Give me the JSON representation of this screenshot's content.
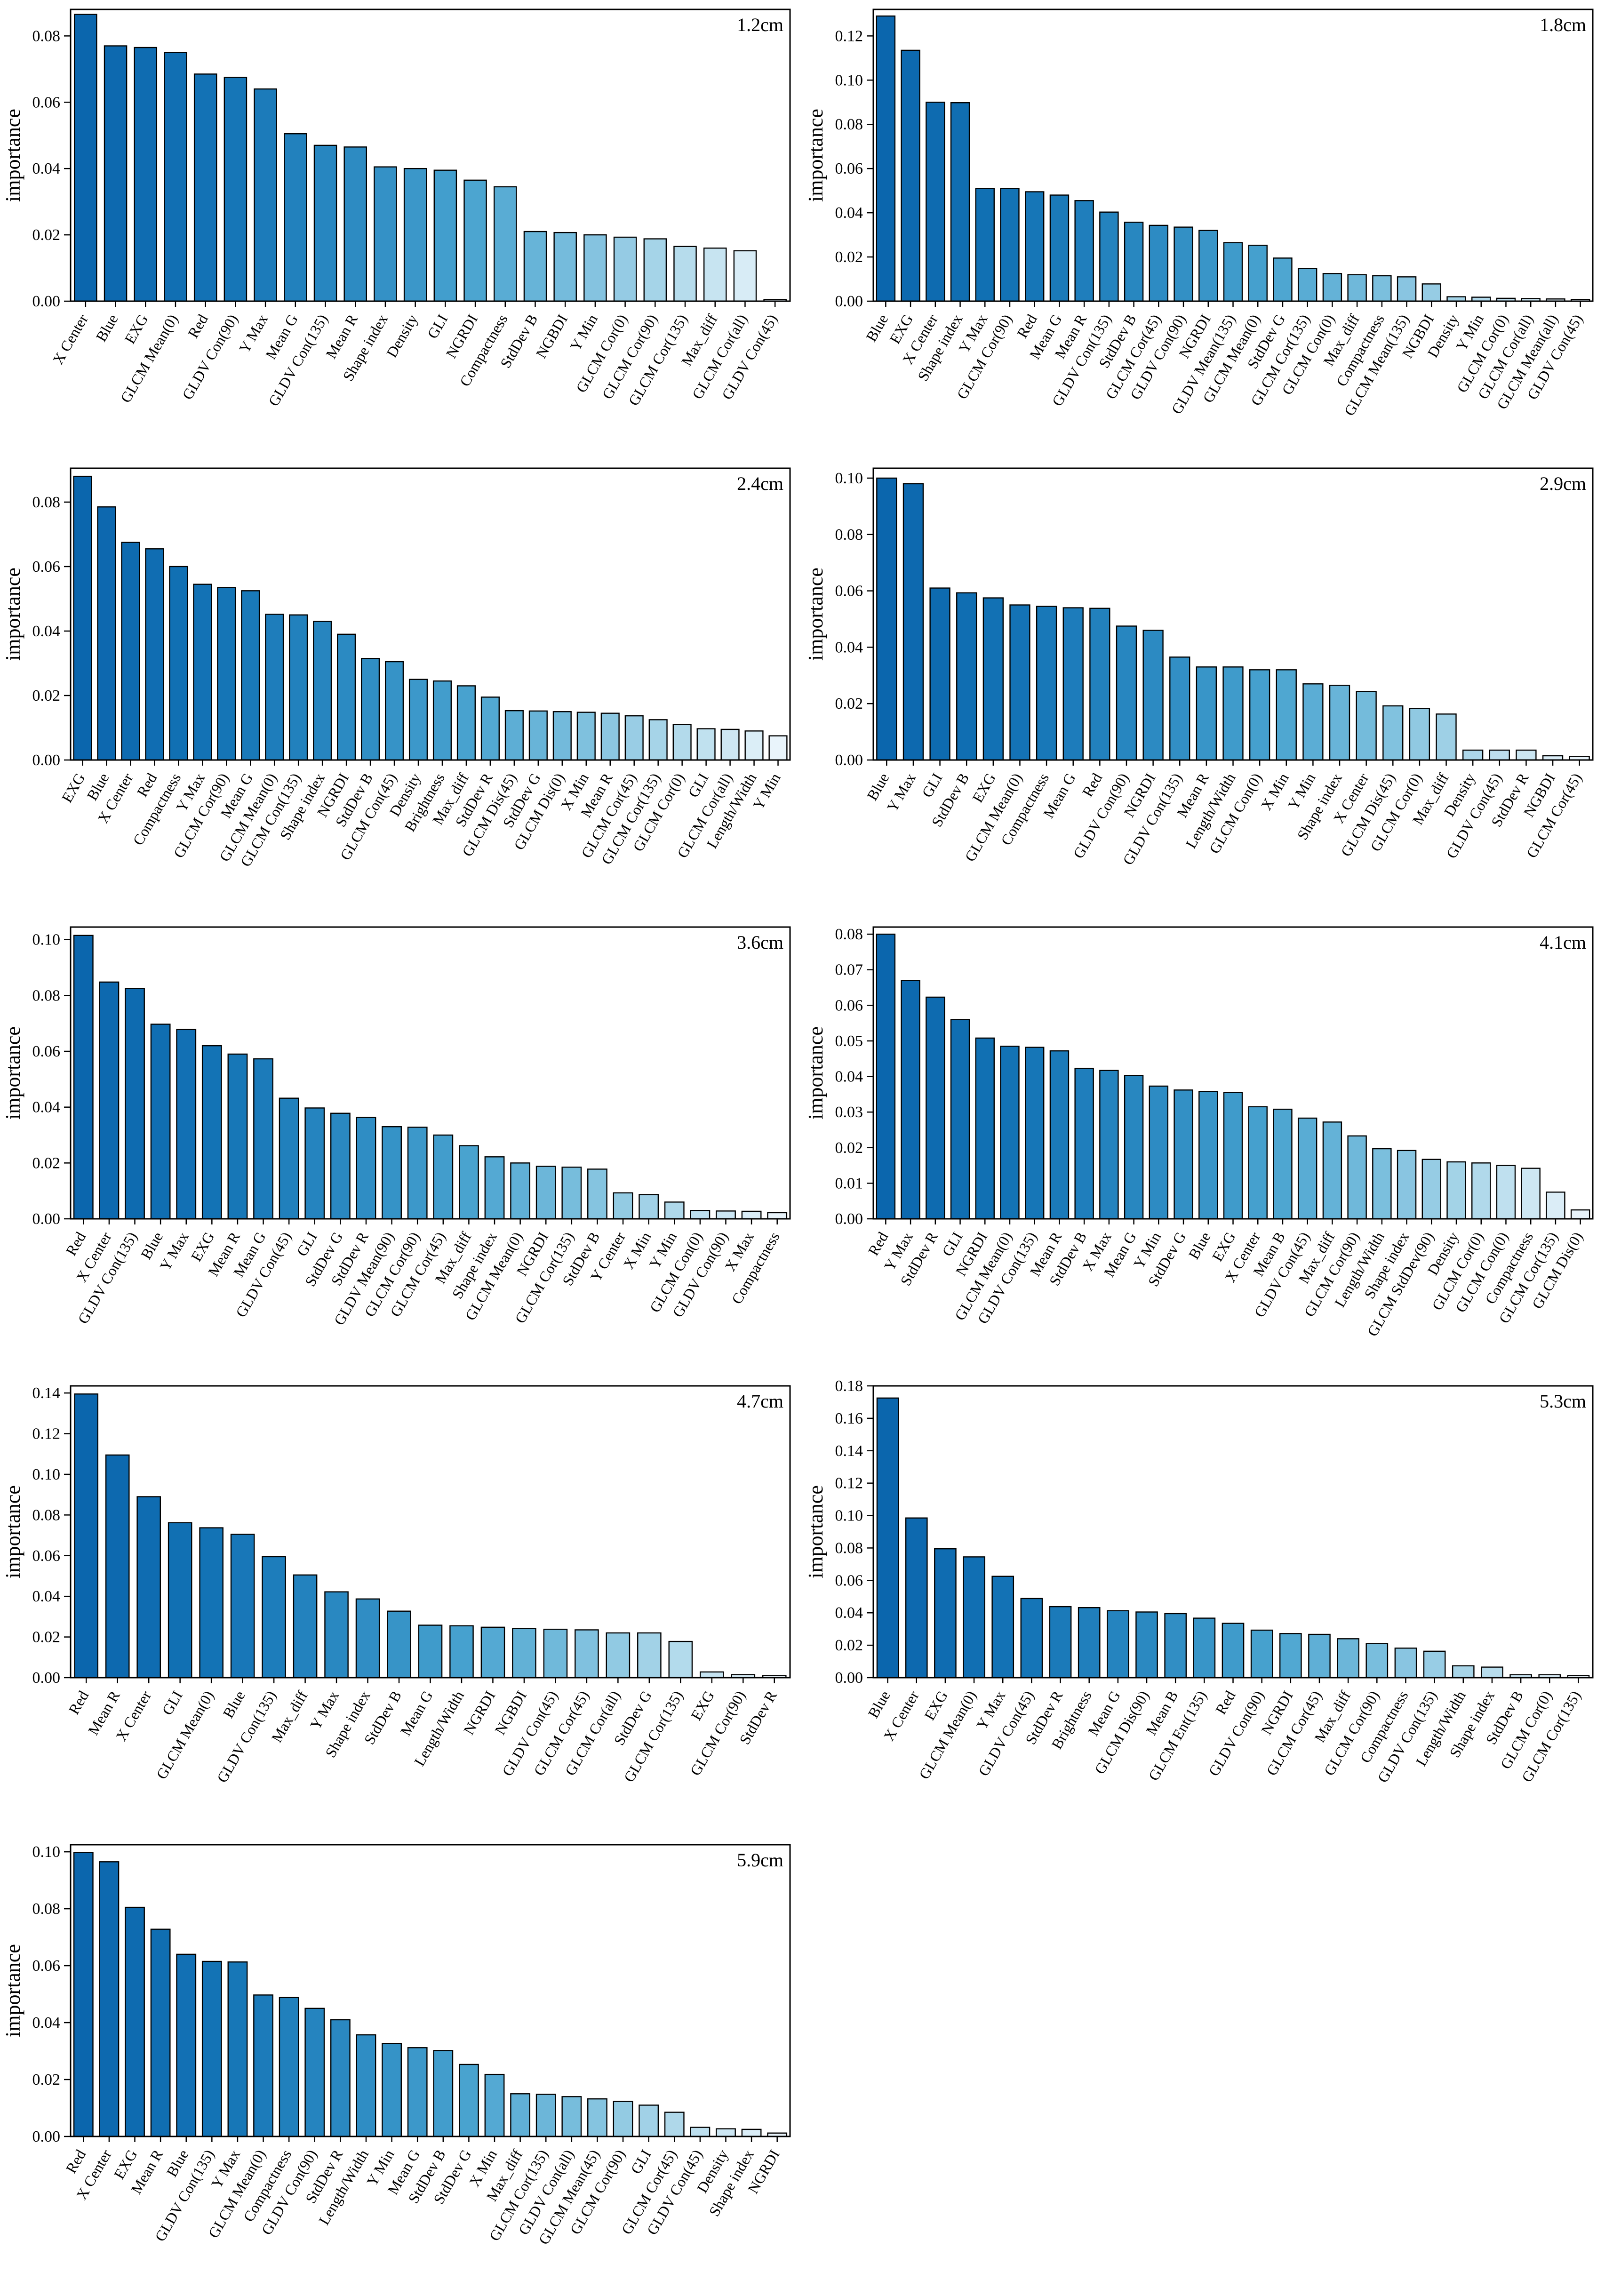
{
  "figure": {
    "background": "#ffffff",
    "ylabel": "importance",
    "bar_edge_color": "#000000",
    "axis_color": "#000000",
    "bar_color_stops": [
      {
        "t": 0.0,
        "color": "#0b66ad"
      },
      {
        "t": 0.2,
        "color": "#1474b6"
      },
      {
        "t": 0.4,
        "color": "#2e8cc3"
      },
      {
        "t": 0.55,
        "color": "#47a2cf"
      },
      {
        "t": 0.7,
        "color": "#76bcdc"
      },
      {
        "t": 0.85,
        "color": "#aed8ea"
      },
      {
        "t": 1.0,
        "color": "#e9f4fb"
      }
    ]
  },
  "chart_data": [
    {
      "type": "bar",
      "title": "1.2cm",
      "ylabel": "importance",
      "ylim": [
        0,
        0.088
      ],
      "yticks": [
        0.0,
        0.02,
        0.04,
        0.06,
        0.08
      ],
      "grid": false,
      "legend": "none",
      "categories": [
        "X Center",
        "Blue",
        "EXG",
        "GLCM Mean(0)",
        "Red",
        "GLDV Con(90)",
        "Y Max",
        "Mean G",
        "GLDV Con(135)",
        "Mean R",
        "Shape index",
        "Density",
        "GLI",
        "NGRDI",
        "Compactness",
        "StdDev B",
        "NGBDI",
        "Y Min",
        "GLCM Cor(0)",
        "GLCM Cor(90)",
        "GLCM Cor(135)",
        "Max_diff",
        "GLCM Cor(all)",
        "GLDV Con(45)"
      ],
      "values": [
        0.0865,
        0.077,
        0.0765,
        0.075,
        0.0685,
        0.0675,
        0.064,
        0.0505,
        0.047,
        0.0465,
        0.0405,
        0.04,
        0.0395,
        0.0365,
        0.0345,
        0.021,
        0.0207,
        0.02,
        0.0193,
        0.0188,
        0.0165,
        0.016,
        0.0152,
        0.0005
      ]
    },
    {
      "type": "bar",
      "title": "1.8cm",
      "ylabel": "importance",
      "ylim": [
        0,
        0.132
      ],
      "yticks": [
        0.0,
        0.02,
        0.04,
        0.06,
        0.08,
        0.1,
        0.12
      ],
      "grid": false,
      "legend": "none",
      "categories": [
        "Blue",
        "EXG",
        "X Center",
        "Shape index",
        "Y Max",
        "GLCM Cor(90)",
        "Red",
        "Mean G",
        "Mean R",
        "GLDV Con(135)",
        "StdDev B",
        "GLCM Cor(45)",
        "GLDV Con(90)",
        "NGRDI",
        "GLDV Mean(135)",
        "GLCM Mean(0)",
        "StdDev G",
        "GLCM Cor(135)",
        "GLCM Con(0)",
        "Max_diff",
        "Compactness",
        "GLCM Mean(135)",
        "NGBDI",
        "Density",
        "Y Min",
        "GLCM Cor(0)",
        "GLCM Cor(all)",
        "GLCM Mean(all)",
        "GLDV Con(45)"
      ],
      "values": [
        0.129,
        0.1135,
        0.09,
        0.0898,
        0.051,
        0.051,
        0.0495,
        0.048,
        0.0455,
        0.0403,
        0.0357,
        0.0343,
        0.0335,
        0.032,
        0.0265,
        0.0253,
        0.0195,
        0.0148,
        0.0125,
        0.012,
        0.0115,
        0.011,
        0.0078,
        0.002,
        0.0018,
        0.0013,
        0.0012,
        0.001,
        0.0008
      ]
    },
    {
      "type": "bar",
      "title": "2.4cm",
      "ylabel": "importance",
      "ylim": [
        0,
        0.0905
      ],
      "yticks": [
        0.0,
        0.02,
        0.04,
        0.06,
        0.08
      ],
      "grid": false,
      "legend": "none",
      "categories": [
        "EXG",
        "Blue",
        "X Center",
        "Red",
        "Compactness",
        "Y Max",
        "GLCM Cor(90)",
        "Mean G",
        "GLCM Mean(0)",
        "GLCM Con(135)",
        "Shape index",
        "NGRDI",
        "StdDev B",
        "GLCM Con(45)",
        "Density",
        "Brightness",
        "Max_diff",
        "StdDev R",
        "GLCM Dis(45)",
        "StdDev G",
        "GLCM Dis(0)",
        "X Min",
        "Mean R",
        "GLCM Cor(45)",
        "GLCM Cor(135)",
        "GLCM Cor(0)",
        "GLI",
        "GLCM Cor(all)",
        "Length/Width",
        "Y Min"
      ],
      "values": [
        0.088,
        0.0785,
        0.0675,
        0.0655,
        0.06,
        0.0545,
        0.0535,
        0.0525,
        0.0452,
        0.045,
        0.043,
        0.039,
        0.0315,
        0.0305,
        0.025,
        0.0245,
        0.023,
        0.0195,
        0.0153,
        0.0152,
        0.015,
        0.0148,
        0.0145,
        0.0137,
        0.0125,
        0.011,
        0.0097,
        0.0095,
        0.009,
        0.0075
      ]
    },
    {
      "type": "bar",
      "title": "2.9cm",
      "ylabel": "importance",
      "ylim": [
        0,
        0.1035
      ],
      "yticks": [
        0.0,
        0.02,
        0.04,
        0.06,
        0.08,
        0.1
      ],
      "grid": false,
      "legend": "none",
      "categories": [
        "Blue",
        "Y Max",
        "GLI",
        "StdDev B",
        "EXG",
        "GLCM Mean(0)",
        "Compactness",
        "Mean G",
        "Red",
        "GLDV Con(90)",
        "NGRDI",
        "GLDV Con(135)",
        "Mean R",
        "Length/Width",
        "GLCM Con(0)",
        "X Min",
        "Y Min",
        "Shape index",
        "X Center",
        "GLCM Dis(45)",
        "GLCM Cor(0)",
        "Max_diff",
        "Density",
        "GLDV Con(45)",
        "StdDev R",
        "NGBDI",
        "GLCM Cor(45)"
      ],
      "values": [
        0.1,
        0.098,
        0.061,
        0.0593,
        0.0575,
        0.055,
        0.0545,
        0.054,
        0.0538,
        0.0475,
        0.046,
        0.0365,
        0.033,
        0.033,
        0.032,
        0.032,
        0.027,
        0.0265,
        0.0243,
        0.0192,
        0.0183,
        0.0163,
        0.0035,
        0.0035,
        0.0035,
        0.0015,
        0.0013
      ]
    },
    {
      "type": "bar",
      "title": "3.6cm",
      "ylabel": "importance",
      "ylim": [
        0,
        0.1045
      ],
      "yticks": [
        0.0,
        0.02,
        0.04,
        0.06,
        0.08,
        0.1
      ],
      "grid": false,
      "legend": "none",
      "categories": [
        "Red",
        "X Center",
        "GLDV Con(135)",
        "Blue",
        "Y Max",
        "EXG",
        "Mean R",
        "Mean G",
        "GLDV Con(45)",
        "GLI",
        "StdDev G",
        "StdDev R",
        "GLDV Mean(90)",
        "GLCM Cor(90)",
        "GLCM Cor(45)",
        "Max_diff",
        "Shape index",
        "GLCM Mean(0)",
        "NGRDI",
        "GLCM Cor(135)",
        "StdDev B",
        "Y Center",
        "X Min",
        "Y Min",
        "GLCM Con(0)",
        "GLDV Con(90)",
        "X Max",
        "Compactness"
      ],
      "values": [
        0.1015,
        0.0848,
        0.0825,
        0.0697,
        0.0678,
        0.062,
        0.059,
        0.0573,
        0.0432,
        0.0397,
        0.0378,
        0.0363,
        0.033,
        0.0328,
        0.03,
        0.0262,
        0.0222,
        0.02,
        0.0188,
        0.0185,
        0.0178,
        0.0093,
        0.0087,
        0.006,
        0.003,
        0.0028,
        0.0027,
        0.0022
      ]
    },
    {
      "type": "bar",
      "title": "4.1cm",
      "ylabel": "importance",
      "ylim": [
        0,
        0.082
      ],
      "yticks": [
        0.0,
        0.01,
        0.02,
        0.03,
        0.04,
        0.05,
        0.06,
        0.07,
        0.08
      ],
      "grid": false,
      "legend": "none",
      "categories": [
        "Red",
        "Y Max",
        "StdDev R",
        "GLI",
        "NGRDI",
        "GLCM Mean(0)",
        "GLDV Con(135)",
        "Mean R",
        "StdDev B",
        "X Max",
        "Mean G",
        "Y Min",
        "StdDev G",
        "Blue",
        "EXG",
        "X Center",
        "Mean B",
        "GLDV Con(45)",
        "Max_diff",
        "GLCM Cor(90)",
        "Length/Width",
        "Shape index",
        "GLCM StdDev(90)",
        "Density",
        "GLCM Cor(0)",
        "GLCM Con(0)",
        "Compactness",
        "GLCM Cor(135)",
        "GLCM Dis(0)"
      ],
      "values": [
        0.08,
        0.067,
        0.0623,
        0.056,
        0.0508,
        0.0485,
        0.0482,
        0.0472,
        0.0423,
        0.0417,
        0.0403,
        0.0373,
        0.0362,
        0.0358,
        0.0355,
        0.0315,
        0.0308,
        0.0283,
        0.0272,
        0.0233,
        0.0197,
        0.0192,
        0.0167,
        0.016,
        0.0157,
        0.015,
        0.0142,
        0.0075,
        0.0025
      ]
    },
    {
      "type": "bar",
      "title": "4.7cm",
      "ylabel": "importance",
      "ylim": [
        0,
        0.1435
      ],
      "yticks": [
        0.0,
        0.02,
        0.04,
        0.06,
        0.08,
        0.1,
        0.12,
        0.14
      ],
      "grid": false,
      "legend": "none",
      "categories": [
        "Red",
        "Mean R",
        "X Center",
        "GLI",
        "GLCM Mean(0)",
        "Blue",
        "GLDV Con(135)",
        "Max_diff",
        "Y Max",
        "Shape index",
        "StdDev B",
        "Mean G",
        "Length/Width",
        "NGRDI",
        "NGBDI",
        "GLDV Con(45)",
        "GLCM Cor(45)",
        "GLCM Cor(all)",
        "StdDev G",
        "GLCM Cor(135)",
        "EXG",
        "GLCM Cor(90)",
        "StdDev R"
      ],
      "values": [
        0.1395,
        0.1095,
        0.089,
        0.0762,
        0.0737,
        0.0705,
        0.0595,
        0.0505,
        0.0422,
        0.0387,
        0.0327,
        0.0258,
        0.0255,
        0.0248,
        0.0242,
        0.0238,
        0.0235,
        0.022,
        0.022,
        0.0178,
        0.0028,
        0.0015,
        0.001
      ]
    },
    {
      "type": "bar",
      "title": "5.3cm",
      "ylabel": "importance",
      "ylim": [
        0,
        0.18
      ],
      "yticks": [
        0.0,
        0.02,
        0.04,
        0.06,
        0.08,
        0.1,
        0.12,
        0.14,
        0.16,
        0.18
      ],
      "grid": false,
      "legend": "none",
      "categories": [
        "Blue",
        "X Center",
        "EXG",
        "GLCM Mean(0)",
        "Y Max",
        "GLDV Con(45)",
        "StdDev R",
        "Brightness",
        "Mean G",
        "GLCM Dis(90)",
        "Mean B",
        "GLCM Ent(135)",
        "Red",
        "GLDV Con(90)",
        "NGRDI",
        "GLCM Cor(45)",
        "Max_diff",
        "GLCM Cor(90)",
        "Compactness",
        "GLDV Con(135)",
        "Length/Width",
        "Shape index",
        "StdDev B",
        "GLCM Cor(0)",
        "GLCM Cor(135)"
      ],
      "values": [
        0.1725,
        0.0985,
        0.0795,
        0.0745,
        0.0625,
        0.0488,
        0.0438,
        0.0432,
        0.0413,
        0.0405,
        0.0395,
        0.0367,
        0.0335,
        0.0293,
        0.0272,
        0.0267,
        0.024,
        0.021,
        0.0182,
        0.0163,
        0.0073,
        0.0065,
        0.0018,
        0.0018,
        0.0013
      ]
    },
    {
      "type": "bar",
      "title": "5.9cm",
      "ylabel": "importance",
      "ylim": [
        0,
        0.1025
      ],
      "yticks": [
        0.0,
        0.02,
        0.04,
        0.06,
        0.08,
        0.1
      ],
      "grid": false,
      "legend": "none",
      "categories": [
        "Red",
        "X Center",
        "EXG",
        "Mean R",
        "Blue",
        "GLDV Con(135)",
        "Y Max",
        "GLCM Mean(0)",
        "Compactness",
        "GLDV Con(90)",
        "StdDev R",
        "Length/Width",
        "Y Min",
        "Mean G",
        "StdDev B",
        "StdDev G",
        "X Min",
        "Max_diff",
        "GLCM Cor(135)",
        "GLDV Con(all)",
        "GLCM Mean(45)",
        "GLCM Cor(90)",
        "GLI",
        "GLCM Cor(45)",
        "GLDV Con(45)",
        "Density",
        "Shape index",
        "NGRDI"
      ],
      "values": [
        0.0998,
        0.0965,
        0.0805,
        0.0728,
        0.064,
        0.0615,
        0.0613,
        0.0497,
        0.0488,
        0.045,
        0.041,
        0.0357,
        0.0327,
        0.0312,
        0.0302,
        0.0253,
        0.0218,
        0.015,
        0.0148,
        0.014,
        0.0132,
        0.0123,
        0.011,
        0.0085,
        0.0032,
        0.0027,
        0.0025,
        0.0012
      ]
    }
  ]
}
